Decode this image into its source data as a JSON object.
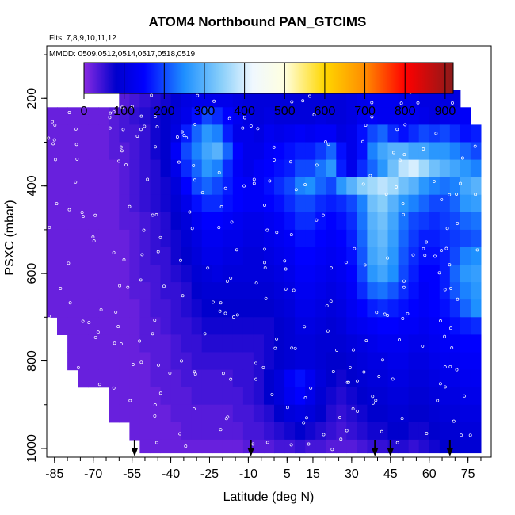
{
  "chart_data": {
    "type": "heatmap",
    "title": "ATOM4 Northbound PAN_GTCIMS",
    "notes": [
      "Flts: 7,8,9,10,11,12",
      "MMDD: 0509,0512,0514,0517,0518,0519"
    ],
    "xlabel": "Latitude (deg N)",
    "ylabel": "PSXC (mbar)",
    "xlim": [
      -88,
      84
    ],
    "ylim": [
      1020,
      80
    ],
    "x_ticks": [
      -85,
      -70,
      -55,
      -40,
      -25,
      -10,
      5,
      15,
      30,
      45,
      60,
      75
    ],
    "y_ticks": [
      200,
      400,
      600,
      800,
      1000
    ],
    "colorbar": {
      "ticks": [
        0,
        100,
        200,
        300,
        400,
        500,
        600,
        700,
        800,
        900
      ],
      "range": [
        0,
        920
      ],
      "stops": [
        {
          "v": 0,
          "color": "#8a2be2"
        },
        {
          "v": 80,
          "color": "#0000cd"
        },
        {
          "v": 150,
          "color": "#0000ff"
        },
        {
          "v": 250,
          "color": "#1e90ff"
        },
        {
          "v": 340,
          "color": "#87cefa"
        },
        {
          "v": 420,
          "color": "#f0f8ff"
        },
        {
          "v": 500,
          "color": "#ffffe0"
        },
        {
          "v": 600,
          "color": "#ffd700"
        },
        {
          "v": 700,
          "color": "#ff8c00"
        },
        {
          "v": 800,
          "color": "#ff0000"
        },
        {
          "v": 920,
          "color": "#8b1a1a"
        }
      ]
    },
    "flight_marker_latitudes": [
      -54,
      -9,
      39,
      45,
      68
    ],
    "lat_bins": [
      -88,
      -84,
      -80,
      -76,
      -72,
      -68,
      -64,
      -60,
      -56,
      -52,
      -48,
      -44,
      -40,
      -36,
      -32,
      -28,
      -24,
      -20,
      -16,
      -12,
      -8,
      -4,
      0,
      4,
      8,
      12,
      16,
      20,
      24,
      28,
      32,
      36,
      40,
      44,
      48,
      52,
      56,
      60,
      64,
      68,
      72,
      76,
      80
    ],
    "pressure_bins": [
      180,
      220,
      260,
      300,
      340,
      380,
      420,
      460,
      500,
      540,
      580,
      620,
      660,
      700,
      740,
      780,
      820,
      860,
      900,
      940,
      980,
      1010
    ],
    "values": [
      [
        null,
        null,
        null,
        null,
        null,
        null,
        null,
        30,
        40,
        50,
        60,
        70,
        90,
        110,
        120,
        120,
        120,
        120,
        110,
        100,
        100,
        100,
        100,
        100,
        100,
        100,
        100,
        100,
        100,
        110,
        120,
        130,
        130,
        130,
        120,
        120,
        110,
        110,
        110,
        110,
        null,
        null
      ],
      [
        20,
        20,
        20,
        20,
        20,
        20,
        30,
        40,
        50,
        60,
        70,
        80,
        100,
        120,
        160,
        200,
        180,
        150,
        130,
        110,
        100,
        110,
        100,
        100,
        100,
        100,
        110,
        100,
        100,
        110,
        130,
        140,
        130,
        130,
        130,
        130,
        120,
        110,
        120,
        130,
        140,
        null
      ],
      [
        20,
        20,
        20,
        20,
        20,
        20,
        30,
        40,
        40,
        50,
        70,
        80,
        110,
        170,
        220,
        260,
        240,
        170,
        120,
        120,
        110,
        130,
        120,
        130,
        140,
        130,
        140,
        140,
        110,
        120,
        160,
        200,
        220,
        180,
        160,
        180,
        200,
        190,
        200,
        180,
        160,
        170
      ],
      [
        20,
        20,
        20,
        20,
        20,
        20,
        30,
        30,
        40,
        50,
        70,
        80,
        140,
        200,
        240,
        280,
        300,
        220,
        150,
        120,
        120,
        140,
        150,
        160,
        170,
        170,
        190,
        220,
        160,
        120,
        160,
        240,
        280,
        300,
        300,
        280,
        280,
        260,
        260,
        240,
        220,
        200
      ],
      [
        20,
        20,
        20,
        20,
        20,
        20,
        20,
        30,
        40,
        50,
        60,
        80,
        120,
        180,
        220,
        260,
        240,
        180,
        140,
        120,
        140,
        150,
        160,
        170,
        200,
        200,
        230,
        260,
        170,
        120,
        180,
        220,
        260,
        320,
        380,
        400,
        360,
        320,
        300,
        280,
        260,
        240
      ],
      [
        20,
        20,
        20,
        20,
        20,
        20,
        20,
        30,
        40,
        50,
        60,
        70,
        100,
        150,
        200,
        220,
        200,
        170,
        150,
        140,
        140,
        160,
        180,
        200,
        240,
        250,
        220,
        200,
        260,
        300,
        340,
        360,
        380,
        360,
        320,
        300,
        260,
        240,
        230,
        240,
        280,
        300
      ],
      [
        20,
        20,
        20,
        20,
        20,
        20,
        20,
        30,
        40,
        50,
        60,
        70,
        90,
        120,
        160,
        180,
        180,
        160,
        150,
        140,
        140,
        150,
        160,
        180,
        200,
        200,
        180,
        170,
        180,
        200,
        240,
        320,
        340,
        300,
        260,
        240,
        220,
        200,
        200,
        220,
        260,
        270
      ],
      [
        20,
        20,
        20,
        20,
        20,
        20,
        20,
        30,
        30,
        40,
        50,
        60,
        80,
        100,
        130,
        150,
        150,
        140,
        130,
        120,
        120,
        130,
        140,
        160,
        180,
        180,
        160,
        150,
        160,
        180,
        230,
        300,
        320,
        280,
        230,
        200,
        190,
        180,
        190,
        200,
        220,
        230
      ],
      [
        20,
        20,
        20,
        20,
        20,
        20,
        20,
        20,
        30,
        40,
        50,
        60,
        70,
        90,
        110,
        130,
        130,
        120,
        120,
        110,
        110,
        120,
        130,
        140,
        160,
        160,
        150,
        140,
        150,
        170,
        220,
        290,
        310,
        270,
        220,
        190,
        170,
        170,
        180,
        190,
        200,
        210
      ],
      [
        20,
        20,
        20,
        20,
        20,
        20,
        20,
        20,
        30,
        40,
        50,
        50,
        70,
        80,
        100,
        120,
        120,
        110,
        110,
        100,
        100,
        110,
        120,
        130,
        150,
        150,
        140,
        130,
        140,
        160,
        210,
        280,
        300,
        260,
        210,
        180,
        160,
        160,
        170,
        200,
        240,
        250
      ],
      [
        20,
        20,
        20,
        20,
        20,
        20,
        20,
        20,
        30,
        40,
        40,
        50,
        60,
        70,
        90,
        100,
        110,
        100,
        100,
        100,
        100,
        100,
        110,
        120,
        140,
        140,
        130,
        120,
        130,
        150,
        200,
        260,
        280,
        250,
        200,
        170,
        150,
        150,
        170,
        220,
        260,
        270
      ],
      [
        20,
        20,
        20,
        20,
        20,
        20,
        20,
        20,
        30,
        30,
        40,
        50,
        50,
        60,
        80,
        90,
        90,
        90,
        90,
        90,
        90,
        90,
        100,
        110,
        130,
        130,
        120,
        110,
        120,
        140,
        180,
        220,
        230,
        210,
        180,
        160,
        140,
        150,
        170,
        210,
        240,
        260
      ],
      [
        20,
        20,
        20,
        20,
        20,
        20,
        20,
        20,
        20,
        30,
        40,
        40,
        50,
        60,
        70,
        80,
        80,
        80,
        80,
        80,
        80,
        80,
        90,
        100,
        120,
        120,
        110,
        100,
        110,
        130,
        150,
        170,
        180,
        170,
        160,
        150,
        140,
        150,
        160,
        180,
        220,
        250
      ],
      [
        null,
        20,
        20,
        20,
        20,
        20,
        20,
        20,
        20,
        30,
        30,
        40,
        50,
        50,
        60,
        70,
        70,
        70,
        70,
        70,
        70,
        70,
        80,
        90,
        110,
        110,
        100,
        90,
        100,
        120,
        130,
        140,
        150,
        150,
        140,
        140,
        130,
        140,
        150,
        160,
        170,
        180
      ],
      [
        null,
        null,
        20,
        20,
        20,
        20,
        20,
        20,
        20,
        30,
        30,
        30,
        40,
        50,
        50,
        60,
        60,
        60,
        60,
        60,
        60,
        70,
        80,
        90,
        100,
        100,
        90,
        90,
        90,
        100,
        110,
        120,
        130,
        130,
        130,
        120,
        120,
        130,
        140,
        140,
        150,
        150
      ],
      [
        null,
        null,
        20,
        20,
        20,
        20,
        20,
        20,
        20,
        20,
        30,
        30,
        40,
        40,
        50,
        50,
        50,
        50,
        50,
        50,
        60,
        70,
        80,
        90,
        100,
        100,
        90,
        80,
        80,
        90,
        100,
        110,
        110,
        120,
        120,
        110,
        110,
        120,
        130,
        130,
        140,
        140
      ],
      [
        null,
        null,
        null,
        20,
        20,
        20,
        20,
        20,
        20,
        20,
        30,
        30,
        30,
        40,
        40,
        40,
        40,
        40,
        50,
        50,
        60,
        80,
        100,
        140,
        160,
        130,
        100,
        80,
        70,
        80,
        90,
        100,
        100,
        110,
        110,
        100,
        100,
        110,
        120,
        120,
        130,
        130
      ],
      [
        null,
        null,
        null,
        null,
        null,
        null,
        20,
        20,
        20,
        20,
        20,
        30,
        30,
        30,
        40,
        40,
        40,
        40,
        40,
        50,
        60,
        80,
        100,
        130,
        150,
        120,
        90,
        70,
        60,
        70,
        80,
        90,
        90,
        100,
        100,
        90,
        90,
        100,
        110,
        110,
        120,
        120
      ],
      [
        null,
        null,
        null,
        null,
        null,
        null,
        20,
        20,
        20,
        20,
        20,
        20,
        30,
        30,
        30,
        30,
        30,
        30,
        40,
        40,
        50,
        60,
        80,
        100,
        110,
        100,
        80,
        60,
        50,
        60,
        70,
        80,
        80,
        90,
        90,
        80,
        80,
        90,
        100,
        100,
        110,
        110
      ],
      [
        null,
        null,
        null,
        null,
        null,
        null,
        null,
        null,
        20,
        20,
        20,
        20,
        20,
        30,
        30,
        30,
        30,
        30,
        30,
        40,
        40,
        50,
        60,
        70,
        80,
        70,
        60,
        50,
        40,
        50,
        60,
        70,
        70,
        80,
        80,
        70,
        70,
        80,
        90,
        90,
        100,
        100
      ],
      [
        null,
        null,
        null,
        null,
        null,
        null,
        null,
        null,
        null,
        20,
        20,
        20,
        20,
        20,
        20,
        20,
        20,
        20,
        20,
        30,
        30,
        30,
        40,
        40,
        50,
        40,
        40,
        30,
        30,
        30,
        40,
        50,
        50,
        60,
        60,
        50,
        60,
        70,
        80,
        80,
        90,
        90
      ]
    ]
  }
}
